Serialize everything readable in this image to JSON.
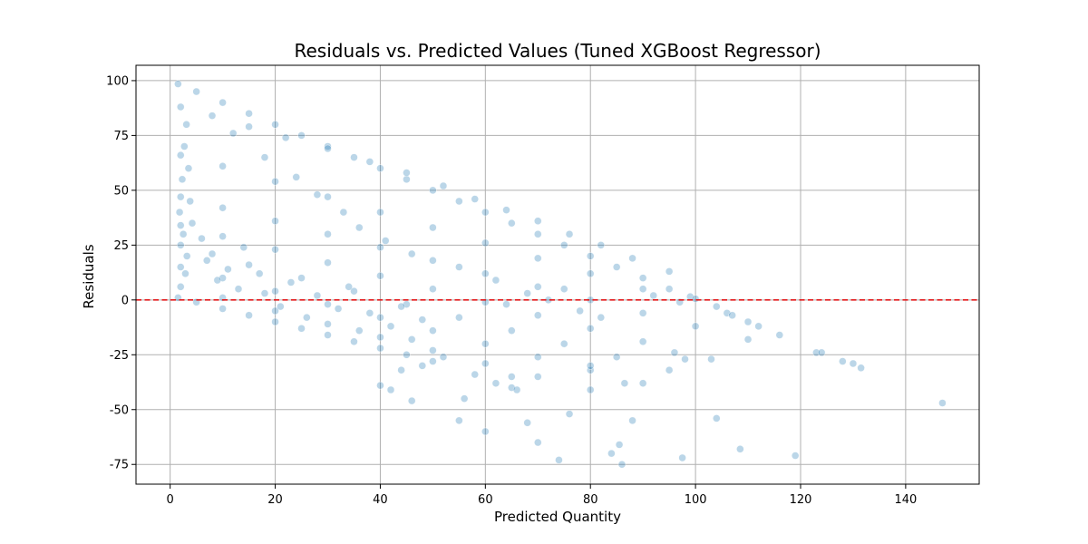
{
  "chart_data": {
    "type": "scatter",
    "title": "Residuals vs. Predicted Values (Tuned XGBoost Regressor)",
    "xlabel": "Predicted Quantity",
    "ylabel": "Residuals",
    "xlim": [
      -6.5,
      154
    ],
    "ylim": [
      -84,
      107
    ],
    "xticks": [
      0,
      20,
      40,
      60,
      80,
      100,
      120,
      140
    ],
    "yticks": [
      -75,
      -50,
      -25,
      0,
      25,
      50,
      75,
      100
    ],
    "grid": true,
    "point_color": "#1f77b4",
    "point_opacity": 0.3,
    "reference_line": {
      "y": 0,
      "color": "#e41a1c",
      "style": "dashed"
    },
    "series": [
      {
        "points": [
          [
            1.5,
            98.5
          ],
          [
            5,
            95
          ],
          [
            10,
            90
          ],
          [
            15,
            85
          ],
          [
            20,
            80
          ],
          [
            25,
            75
          ],
          [
            30,
            70
          ],
          [
            35,
            65
          ],
          [
            40,
            60
          ],
          [
            45,
            55
          ],
          [
            50,
            50
          ],
          [
            55,
            45
          ],
          [
            60,
            40
          ],
          [
            65,
            35
          ],
          [
            70,
            30
          ],
          [
            75,
            25
          ],
          [
            80,
            20
          ],
          [
            85,
            15
          ],
          [
            90,
            10
          ],
          [
            95,
            5
          ],
          [
            99,
            1.5
          ],
          [
            100,
            0.5
          ],
          [
            2,
            88
          ],
          [
            8,
            84
          ],
          [
            15,
            79
          ],
          [
            22,
            74
          ],
          [
            30,
            69
          ],
          [
            38,
            63
          ],
          [
            45,
            58
          ],
          [
            52,
            52
          ],
          [
            58,
            46
          ],
          [
            64,
            41
          ],
          [
            70,
            36
          ],
          [
            76,
            30
          ],
          [
            82,
            25
          ],
          [
            88,
            19
          ],
          [
            95,
            13
          ],
          [
            2,
            66
          ],
          [
            10,
            61
          ],
          [
            20,
            54
          ],
          [
            30,
            47
          ],
          [
            40,
            40
          ],
          [
            50,
            33
          ],
          [
            60,
            26
          ],
          [
            70,
            19
          ],
          [
            80,
            12
          ],
          [
            90,
            5
          ],
          [
            97,
            -1
          ],
          [
            2,
            47
          ],
          [
            10,
            42
          ],
          [
            20,
            36
          ],
          [
            30,
            30
          ],
          [
            40,
            24
          ],
          [
            50,
            18
          ],
          [
            60,
            12
          ],
          [
            70,
            6
          ],
          [
            80,
            0
          ],
          [
            90,
            -6
          ],
          [
            100,
            -12
          ],
          [
            110,
            -18
          ],
          [
            2,
            34
          ],
          [
            10,
            29
          ],
          [
            20,
            23
          ],
          [
            30,
            17
          ],
          [
            40,
            11
          ],
          [
            50,
            5
          ],
          [
            60,
            -1
          ],
          [
            70,
            -7
          ],
          [
            80,
            -13
          ],
          [
            90,
            -19
          ],
          [
            103,
            -27
          ],
          [
            2,
            25
          ],
          [
            8,
            21
          ],
          [
            15,
            16
          ],
          [
            25,
            10
          ],
          [
            35,
            4
          ],
          [
            45,
            -2
          ],
          [
            55,
            -8
          ],
          [
            65,
            -14
          ],
          [
            75,
            -20
          ],
          [
            85,
            -26
          ],
          [
            95,
            -32
          ],
          [
            2,
            15
          ],
          [
            10,
            10
          ],
          [
            20,
            4
          ],
          [
            30,
            -2
          ],
          [
            40,
            -8
          ],
          [
            50,
            -14
          ],
          [
            60,
            -20
          ],
          [
            70,
            -26
          ],
          [
            80,
            -32
          ],
          [
            90,
            -38
          ],
          [
            2,
            6
          ],
          [
            10,
            1
          ],
          [
            20,
            -5
          ],
          [
            30,
            -11
          ],
          [
            40,
            -17
          ],
          [
            50,
            -23
          ],
          [
            60,
            -29
          ],
          [
            70,
            -35
          ],
          [
            80,
            -41
          ],
          [
            1.5,
            1
          ],
          [
            5,
            -1
          ],
          [
            10,
            -4
          ],
          [
            15,
            -7
          ],
          [
            20,
            -10
          ],
          [
            25,
            -13
          ],
          [
            30,
            -16
          ],
          [
            35,
            -19
          ],
          [
            40,
            -22
          ],
          [
            45,
            -25
          ],
          [
            50,
            -28
          ],
          [
            1.8,
            40
          ],
          [
            2.3,
            55
          ],
          [
            2.7,
            70
          ],
          [
            3.1,
            80
          ],
          [
            3.5,
            60
          ],
          [
            2.5,
            30
          ],
          [
            3.2,
            20
          ],
          [
            2.9,
            12
          ],
          [
            3.8,
            45
          ],
          [
            4.2,
            35
          ],
          [
            6,
            28
          ],
          [
            7,
            18
          ],
          [
            9,
            9
          ],
          [
            11,
            14
          ],
          [
            13,
            5
          ],
          [
            14,
            24
          ],
          [
            17,
            12
          ],
          [
            18,
            3
          ],
          [
            21,
            -3
          ],
          [
            23,
            8
          ],
          [
            26,
            -8
          ],
          [
            28,
            2
          ],
          [
            32,
            -4
          ],
          [
            34,
            6
          ],
          [
            36,
            -14
          ],
          [
            38,
            -6
          ],
          [
            42,
            -12
          ],
          [
            44,
            -3
          ],
          [
            46,
            -18
          ],
          [
            48,
            -9
          ],
          [
            12,
            76
          ],
          [
            18,
            65
          ],
          [
            24,
            56
          ],
          [
            28,
            48
          ],
          [
            33,
            40
          ],
          [
            36,
            33
          ],
          [
            41,
            27
          ],
          [
            46,
            21
          ],
          [
            55,
            15
          ],
          [
            62,
            9
          ],
          [
            55,
            -55
          ],
          [
            56,
            -45
          ],
          [
            60,
            -60
          ],
          [
            65,
            -35
          ],
          [
            68,
            -56
          ],
          [
            70,
            -65
          ],
          [
            74,
            -73
          ],
          [
            76,
            -52
          ],
          [
            80,
            -30
          ],
          [
            84,
            -70
          ],
          [
            85.5,
            -66
          ],
          [
            86,
            -75
          ],
          [
            86.5,
            -38
          ],
          [
            88,
            -55
          ],
          [
            97.5,
            -72
          ],
          [
            104,
            -54
          ],
          [
            108.5,
            -68
          ],
          [
            119,
            -71
          ],
          [
            147,
            -47
          ],
          [
            123,
            -24
          ],
          [
            124,
            -24
          ],
          [
            128,
            -28
          ],
          [
            130,
            -29
          ],
          [
            131.5,
            -31
          ],
          [
            116,
            -16
          ],
          [
            112,
            -12
          ],
          [
            110,
            -10
          ],
          [
            106,
            -6
          ],
          [
            96,
            -24
          ],
          [
            65,
            -40
          ],
          [
            66,
            -41
          ],
          [
            58,
            -34
          ],
          [
            62,
            -38
          ],
          [
            52,
            -26
          ],
          [
            48,
            -30
          ],
          [
            44,
            -32
          ],
          [
            40,
            -39
          ],
          [
            42,
            -41
          ],
          [
            46,
            -46
          ],
          [
            78,
            -5
          ],
          [
            82,
            -8
          ],
          [
            75,
            5
          ],
          [
            72,
            0
          ],
          [
            68,
            3
          ],
          [
            64,
            -2
          ],
          [
            92,
            2
          ],
          [
            98,
            -27
          ],
          [
            104,
            -3
          ],
          [
            107,
            -7
          ]
        ]
      }
    ]
  }
}
